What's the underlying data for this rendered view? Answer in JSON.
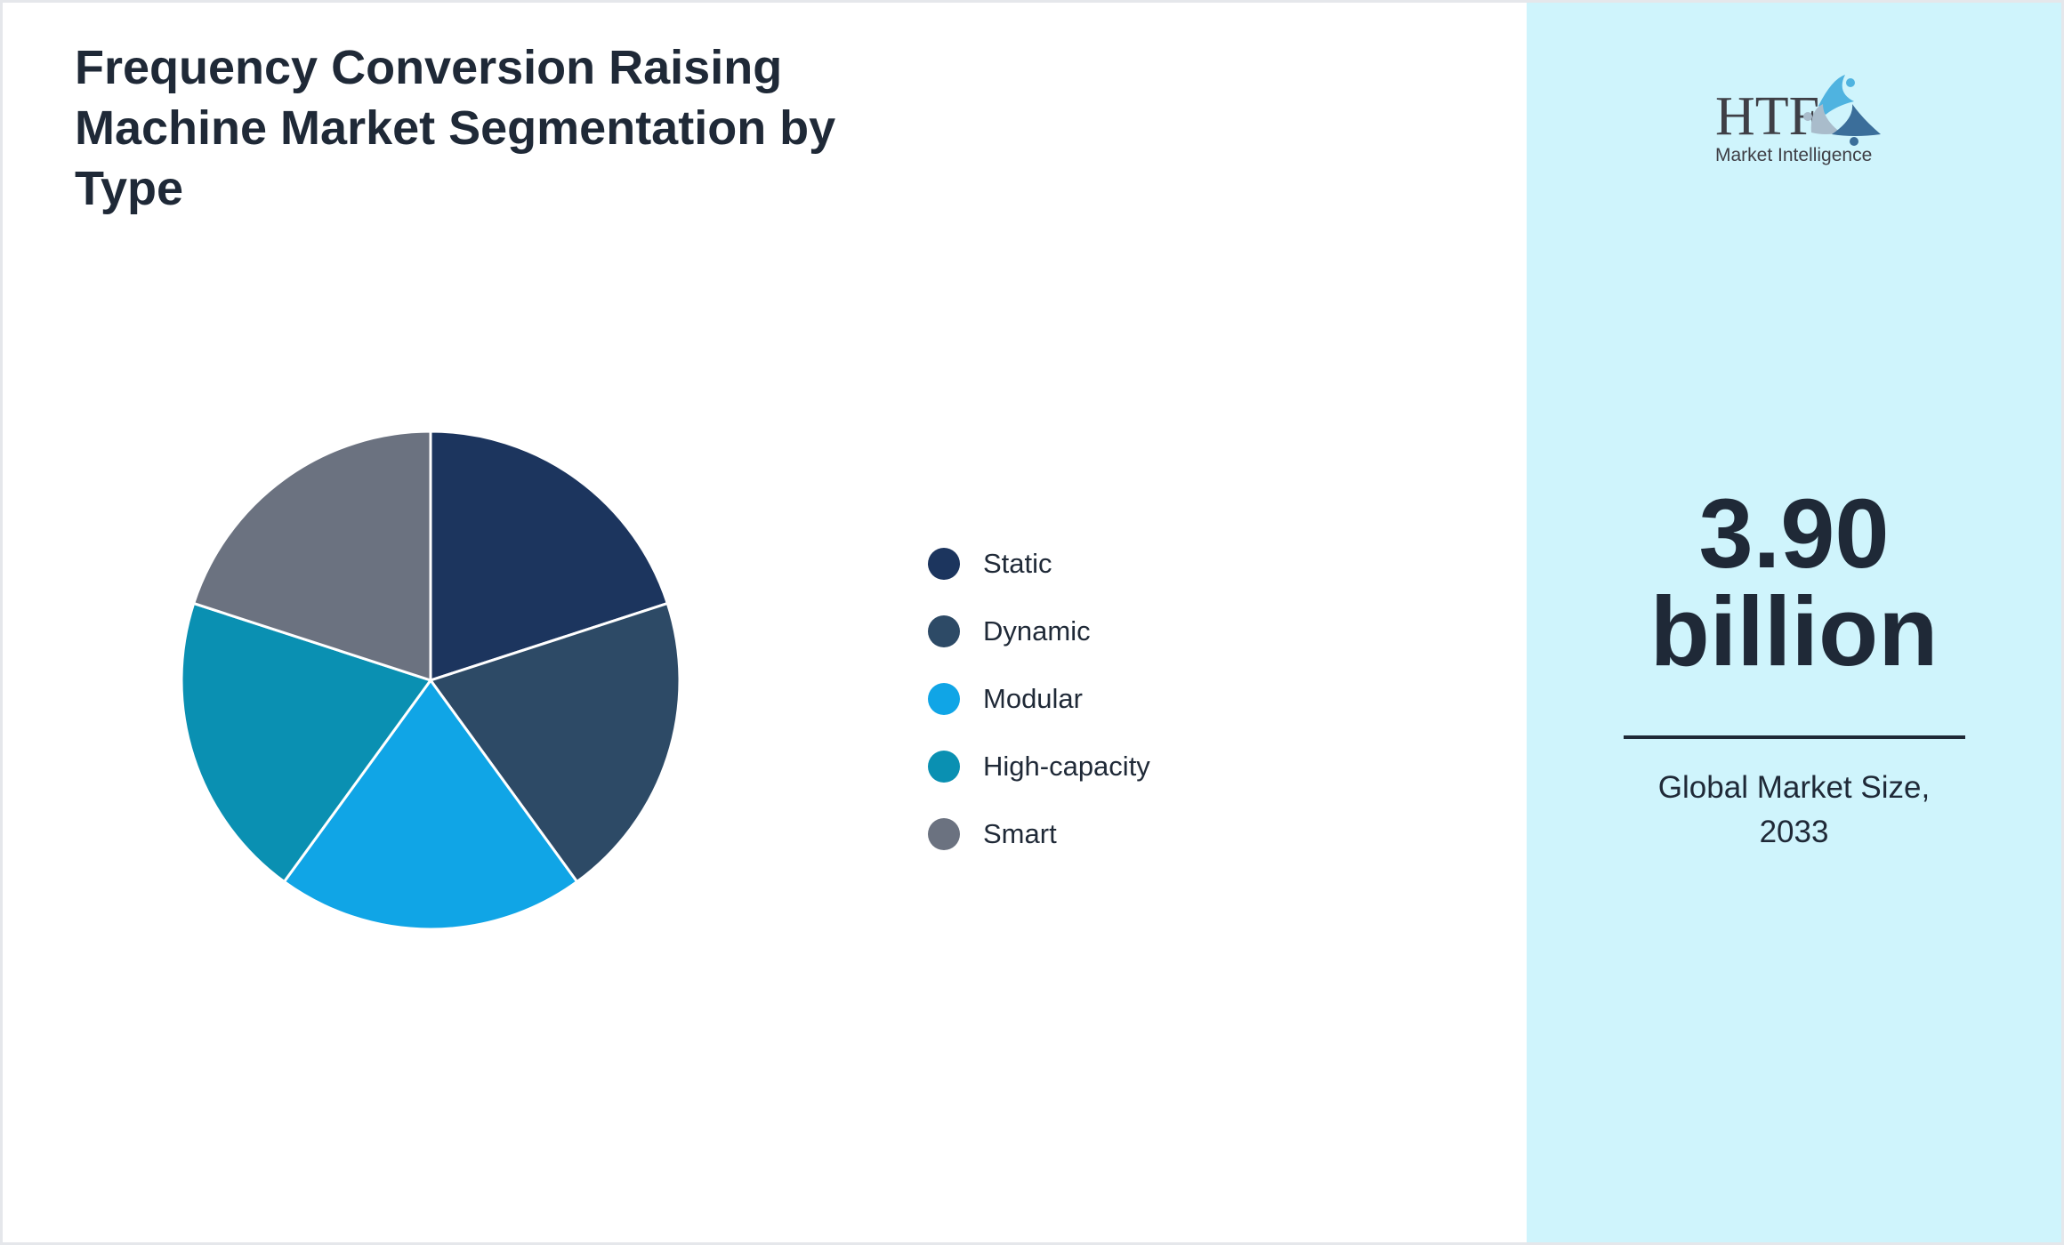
{
  "title": "Frequency Conversion Raising Machine Market Segmentation by Type",
  "chart_data": {
    "type": "pie",
    "title": "Frequency Conversion Raising Machine Market Segmentation by Type",
    "categories": [
      "Static",
      "Dynamic",
      "Modular",
      "High-capacity",
      "Smart"
    ],
    "values": [
      20,
      20,
      20,
      20,
      20
    ],
    "colors": [
      "#1c355e",
      "#2d4a66",
      "#10a5e6",
      "#0a90b2",
      "#6b7280"
    ],
    "legend_position": "right"
  },
  "legend": {
    "items": [
      {
        "label": "Static",
        "color": "#1c355e"
      },
      {
        "label": "Dynamic",
        "color": "#2d4a66"
      },
      {
        "label": "Modular",
        "color": "#10a5e6"
      },
      {
        "label": "High-capacity",
        "color": "#0a90b2"
      },
      {
        "label": "Smart",
        "color": "#6b7280"
      }
    ]
  },
  "side_panel": {
    "logo_text": "HTF",
    "logo_subtext": "Market Intelligence",
    "value_number": "3.90",
    "value_unit": "billion",
    "caption_line1": "Global Market Size,",
    "caption_line2": "2033",
    "background": "#cff4fc"
  }
}
